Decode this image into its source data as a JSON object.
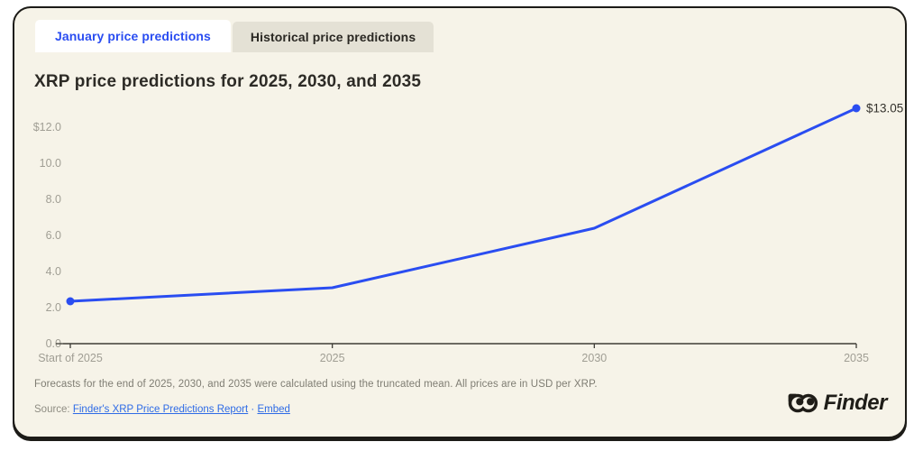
{
  "tabs": [
    {
      "label": "January price predictions",
      "active": true
    },
    {
      "label": "Historical price predictions",
      "active": false
    }
  ],
  "title": "XRP price predictions for 2025, 2030, and 2035",
  "chart_data": {
    "type": "line",
    "categories": [
      "Start of 2025",
      "2025",
      "2030",
      "2035"
    ],
    "values": [
      2.35,
      3.1,
      6.4,
      13.05
    ],
    "end_label": "$13.05",
    "y_ticks": [
      {
        "value": 0,
        "label": "0.0"
      },
      {
        "value": 2,
        "label": "2.0"
      },
      {
        "value": 4,
        "label": "4.0"
      },
      {
        "value": 6,
        "label": "6.0"
      },
      {
        "value": 8,
        "label": "8.0"
      },
      {
        "value": 10,
        "label": "10.0"
      },
      {
        "value": 12,
        "label": "$12.0"
      }
    ],
    "ylim": [
      0,
      13.5
    ],
    "marker_point_indexes": [
      0,
      3
    ],
    "line_color": "#2a4df1",
    "grid": false,
    "legend": "none",
    "units": "USD per XRP"
  },
  "footer": {
    "note": "Forecasts for the end of 2025, 2030, and 2035 were calculated using the truncated mean. All prices are in USD per XRP.",
    "source_prefix": "Source:",
    "source_link": "Finder's XRP Price Predictions Report",
    "separator": "·",
    "embed_link": "Embed",
    "logo_text": "Finder"
  },
  "colors": {
    "accent_blue": "#2a4df1",
    "link_blue": "#2e6be6",
    "card_background": "#f6f3e8",
    "card_border": "#1c1b17",
    "axis_text": "#a09e94",
    "axis_line": "#3f3d36",
    "title_text": "#2d2b26",
    "note_text": "#7f7d73"
  }
}
